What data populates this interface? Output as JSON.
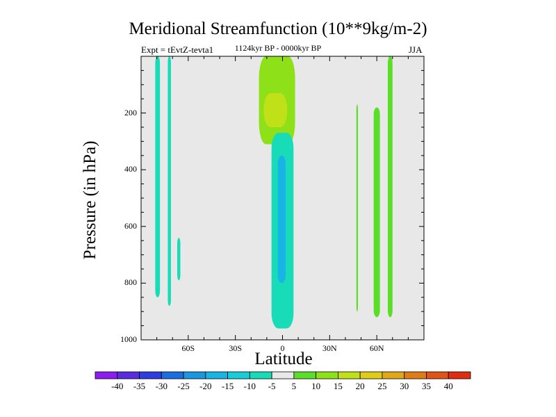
{
  "chart_data": {
    "type": "contour",
    "title": "Meridional Streamfunction (10**9kg/m-2)",
    "left_label": "Expt = tEvtZ-tevta1",
    "center_label": "1124kyr BP - 0000kyr BP",
    "season": "JJA",
    "xlabel": "Latitude",
    "ylabel": "Pressure (in hPa)",
    "xlim": [
      -90,
      90
    ],
    "ylim": [
      1000,
      0
    ],
    "x_ticks": [
      {
        "value": -60,
        "label": "60S"
      },
      {
        "value": -30,
        "label": "30S"
      },
      {
        "value": 0,
        "label": "0"
      },
      {
        "value": 30,
        "label": "30N"
      },
      {
        "value": 60,
        "label": "60N"
      }
    ],
    "y_ticks": [
      {
        "value": 200,
        "label": "200"
      },
      {
        "value": 400,
        "label": "400"
      },
      {
        "value": 600,
        "label": "600"
      },
      {
        "value": 800,
        "label": "800"
      },
      {
        "value": 1000,
        "label": "1000"
      }
    ],
    "background_color": "#e8e8e8",
    "colorbar": {
      "levels": [
        "-40",
        "-35",
        "-30",
        "-25",
        "-20",
        "-15",
        "-10",
        "-5",
        "5",
        "10",
        "15",
        "20",
        "25",
        "30",
        "35",
        "40"
      ],
      "colors": [
        "#8c1cf0",
        "#5a2ce0",
        "#2c3ee0",
        "#1c6ee0",
        "#1c96e0",
        "#18b4e6",
        "#18ccd8",
        "#18dcb8",
        "#e8e8e8",
        "#5ade28",
        "#8ee018",
        "#c0e018",
        "#e0cc18",
        "#e0a818",
        "#e07c18",
        "#e05418",
        "#e02c10"
      ]
    },
    "features": [
      {
        "name": "cell-60s-negative-band",
        "value": -10,
        "lat": [
          -81,
          -78
        ],
        "p": [
          0,
          850
        ]
      },
      {
        "name": "cell-60s-narrow-strip",
        "value": -10,
        "lat": [
          -73,
          -71
        ],
        "p": [
          0,
          880
        ]
      },
      {
        "name": "cell-60s-small",
        "value": -10,
        "lat": [
          -67,
          -65
        ],
        "p": [
          640,
          790
        ]
      },
      {
        "name": "cell-upper-tropics-positive",
        "value": 10,
        "lat": [
          -15,
          8
        ],
        "p": [
          0,
          310
        ]
      },
      {
        "name": "cell-upper-tropics-core",
        "value": 15,
        "lat": [
          -12,
          3
        ],
        "p": [
          130,
          250
        ]
      },
      {
        "name": "cell-equatorial-negative",
        "value": -10,
        "lat": [
          -7,
          7
        ],
        "p": [
          270,
          960
        ]
      },
      {
        "name": "cell-equatorial-core",
        "value": -20,
        "lat": [
          -3,
          2
        ],
        "p": [
          350,
          800
        ]
      },
      {
        "name": "cell-60n-positive",
        "value": 5,
        "lat": [
          58,
          62
        ],
        "p": [
          180,
          920
        ]
      },
      {
        "name": "cell-70n-positive",
        "value": 5,
        "lat": [
          67,
          70
        ],
        "p": [
          0,
          920
        ]
      },
      {
        "name": "cell-50n-thin",
        "value": 5,
        "lat": [
          47,
          48
        ],
        "p": [
          170,
          900
        ]
      }
    ]
  }
}
